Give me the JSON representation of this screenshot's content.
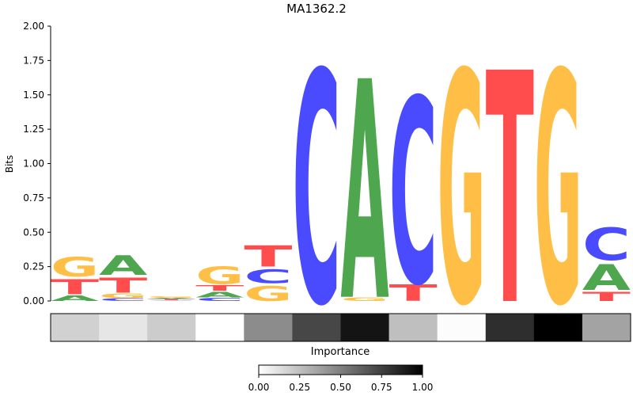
{
  "chart_data": {
    "type": "sequence-logo",
    "title": "MA1362.2",
    "ylabel": "Bits",
    "ylim": [
      0,
      2.0
    ],
    "yticks": [
      "0.00",
      "0.25",
      "0.50",
      "0.75",
      "1.00",
      "1.25",
      "1.50",
      "1.75",
      "2.00"
    ],
    "positions": [
      [
        {
          "base": "A",
          "bits": 0.05
        },
        {
          "base": "T",
          "bits": 0.13
        },
        {
          "base": "G",
          "bits": 0.17
        }
      ],
      [
        {
          "base": "C",
          "bits": 0.02
        },
        {
          "base": "G",
          "bits": 0.04
        },
        {
          "base": "T",
          "bits": 0.13
        },
        {
          "base": "A",
          "bits": 0.17
        }
      ],
      [
        {
          "base": "C",
          "bits": 0.005
        },
        {
          "base": "T",
          "bits": 0.008
        },
        {
          "base": "A",
          "bits": 0.01
        },
        {
          "base": "G",
          "bits": 0.012
        }
      ],
      [
        {
          "base": "C",
          "bits": 0.025
        },
        {
          "base": "A",
          "bits": 0.05
        },
        {
          "base": "T",
          "bits": 0.05
        },
        {
          "base": "G",
          "bits": 0.15
        }
      ],
      [
        {
          "base": "G",
          "bits": 0.13
        },
        {
          "base": "C",
          "bits": 0.12
        },
        {
          "base": "T",
          "bits": 0.18
        }
      ],
      [
        {
          "base": "C",
          "bits": 2.0
        }
      ],
      [
        {
          "base": "G",
          "bits": 0.03
        },
        {
          "base": "A",
          "bits": 1.89
        }
      ],
      [
        {
          "base": "T",
          "bits": 0.14
        },
        {
          "base": "C",
          "bits": 1.6
        }
      ],
      [
        {
          "base": "G",
          "bits": 2.0
        }
      ],
      [
        {
          "base": "T",
          "bits": 2.0
        }
      ],
      [
        {
          "base": "G",
          "bits": 2.0
        }
      ],
      [
        {
          "base": "T",
          "bits": 0.08
        },
        {
          "base": "A",
          "bits": 0.22
        },
        {
          "base": "C",
          "bits": 0.28
        }
      ]
    ],
    "importance": {
      "label": "Importance",
      "values": [
        0.18,
        0.1,
        0.2,
        0.0,
        0.45,
        0.72,
        0.92,
        0.25,
        0.01,
        0.82,
        1.0,
        0.36
      ]
    },
    "colorbar": {
      "ticks": [
        "0.00",
        "0.25",
        "0.50",
        "0.75",
        "1.00"
      ],
      "range": [
        0,
        1
      ]
    }
  },
  "colors": {
    "A": "#4ea64e",
    "C": "#4a4aff",
    "G": "#ffbf47",
    "T": "#ff4d4d"
  }
}
